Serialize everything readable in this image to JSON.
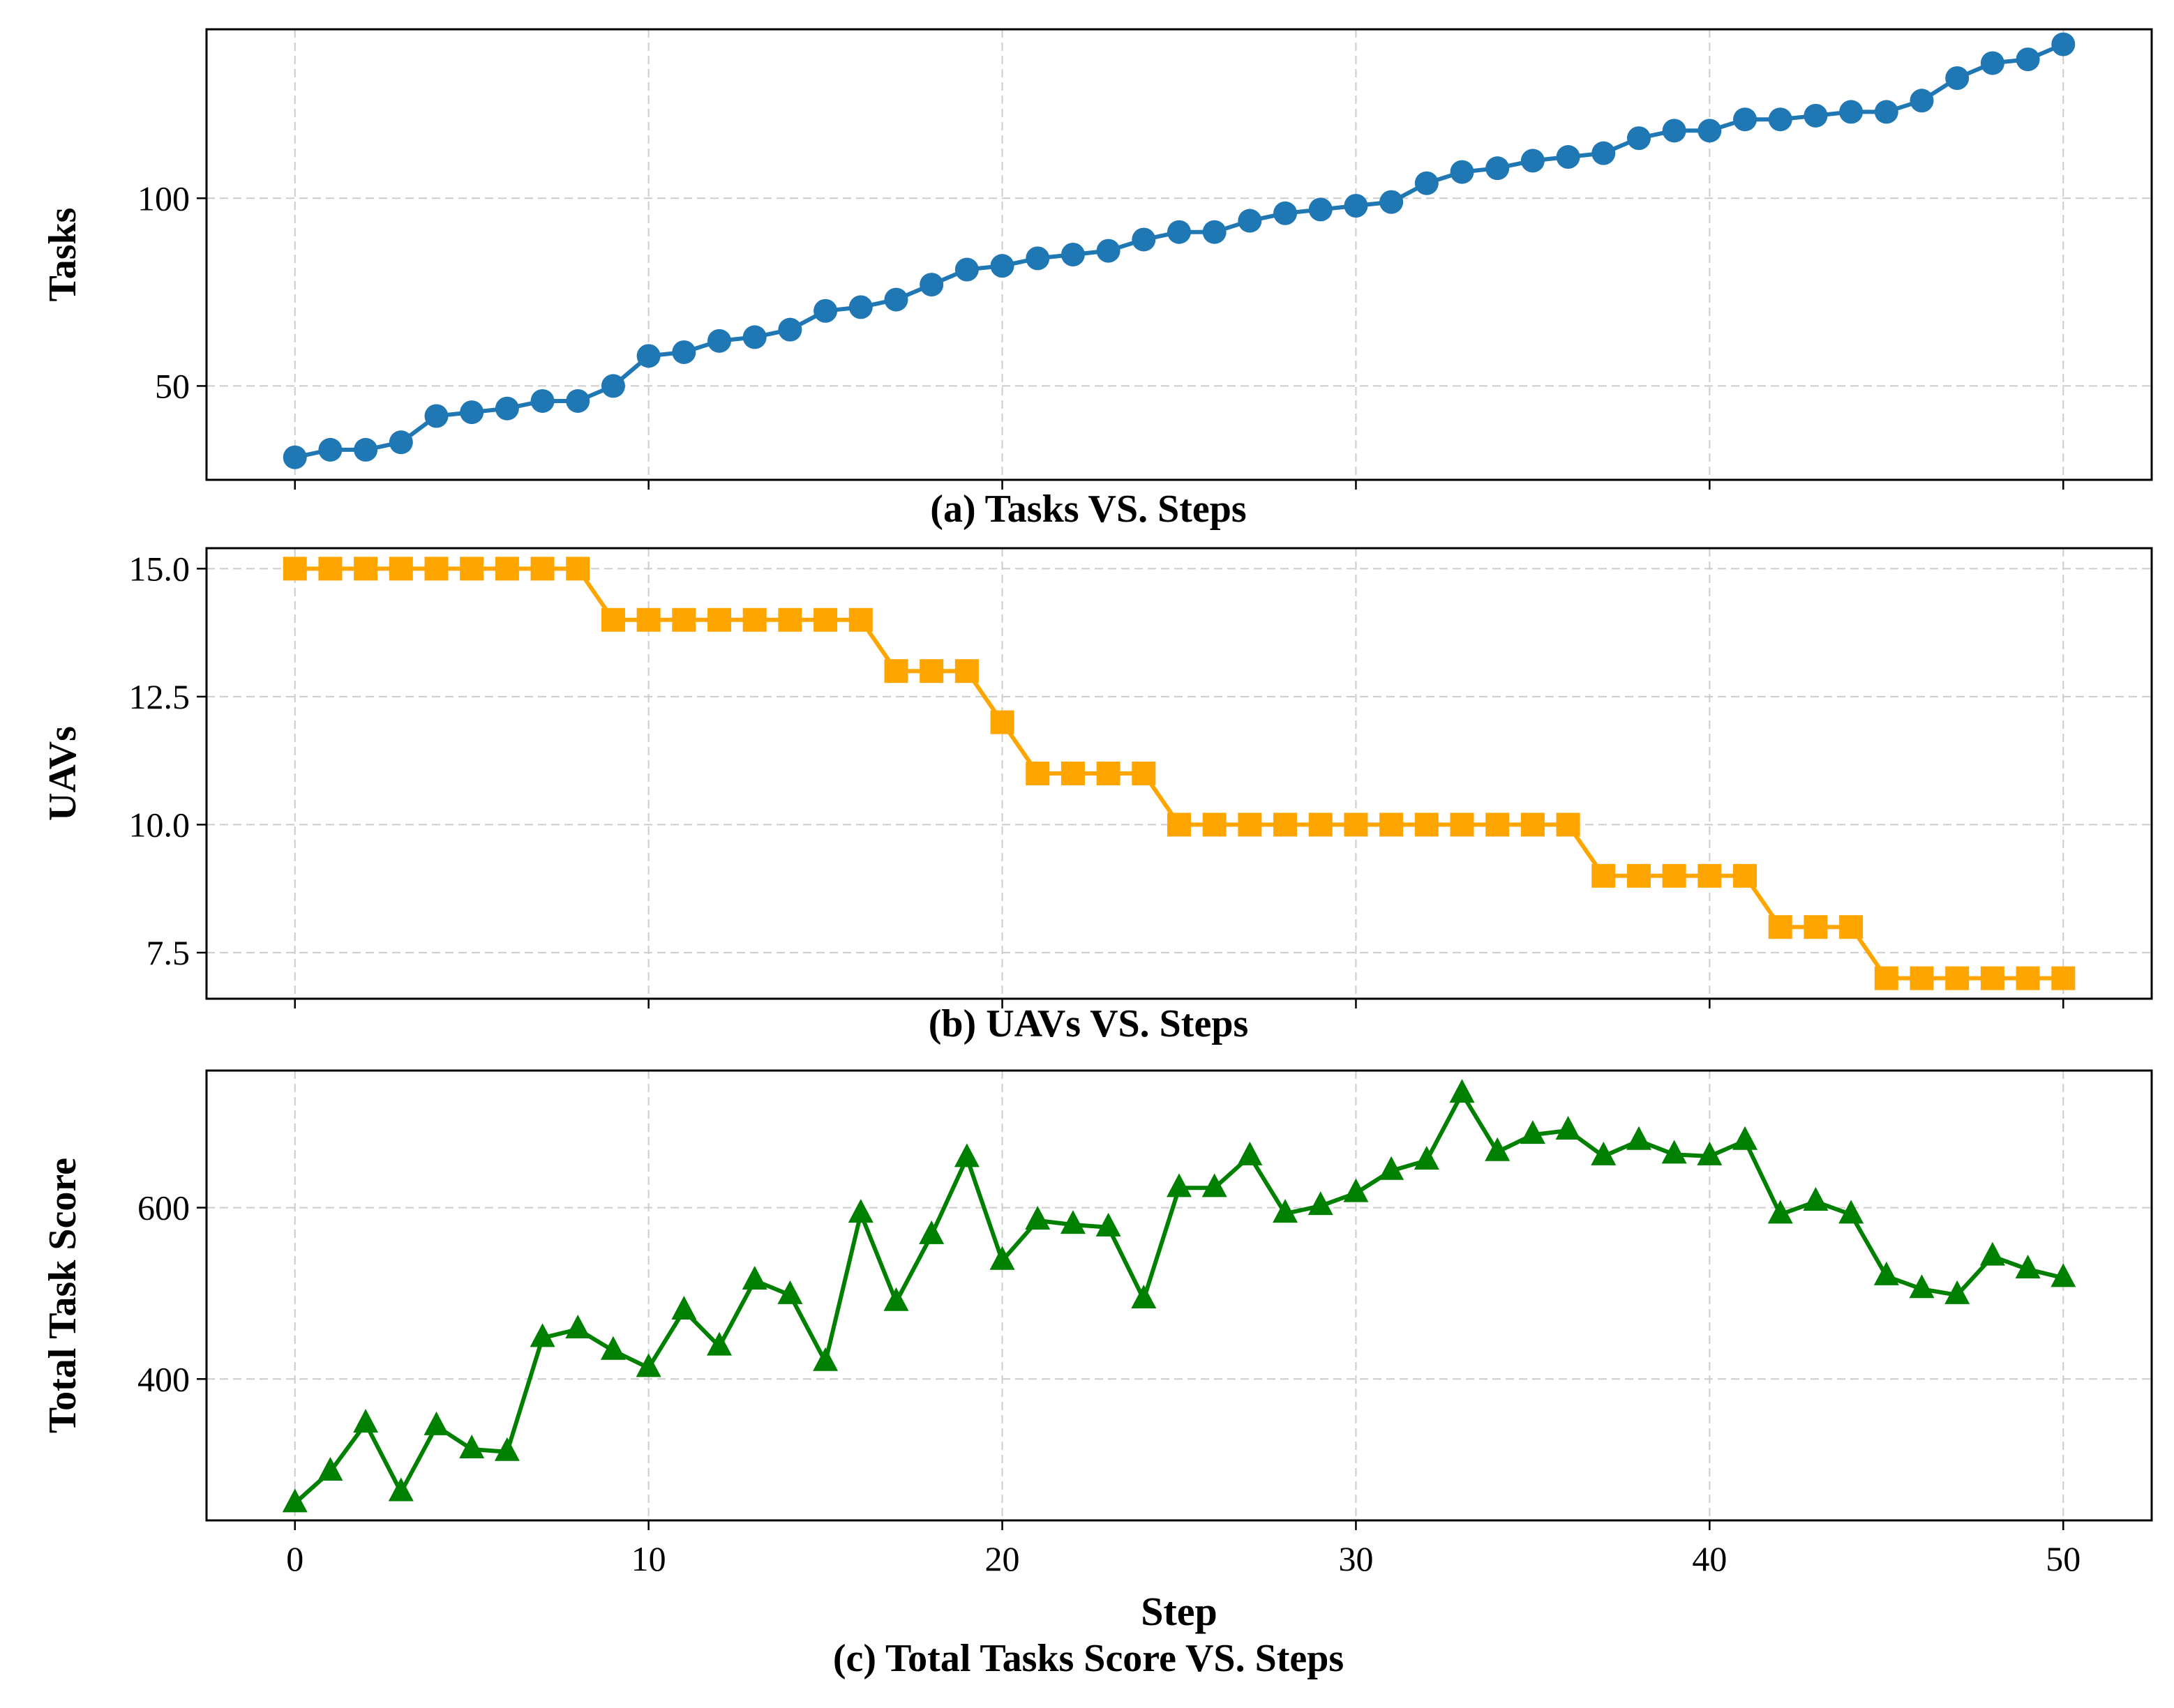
{
  "colors": {
    "blue": "#1f77b4",
    "orange": "#ffa500",
    "green": "#008000",
    "grid": "#cccccc",
    "axis": "#000000"
  },
  "x_axis": {
    "label": "Step",
    "ticks": [
      "0",
      "10",
      "20",
      "30",
      "40",
      "50"
    ]
  },
  "chart_data": [
    {
      "type": "line",
      "title": "(a) Tasks VS. Steps",
      "xlabel": "",
      "ylabel": "Tasks",
      "marker": "circle",
      "xlim": [
        -2.5,
        52.5
      ],
      "ylim": [
        25,
        145
      ],
      "yticks": [
        "50",
        "100"
      ],
      "grid": true,
      "x": [
        0,
        1,
        2,
        3,
        4,
        5,
        6,
        7,
        8,
        9,
        10,
        11,
        12,
        13,
        14,
        15,
        16,
        17,
        18,
        19,
        20,
        21,
        22,
        23,
        24,
        25,
        26,
        27,
        28,
        29,
        30,
        31,
        32,
        33,
        34,
        35,
        36,
        37,
        38,
        39,
        40,
        41,
        42,
        43,
        44,
        45,
        46,
        47,
        48,
        49,
        50
      ],
      "y": [
        31,
        33,
        33,
        35,
        42,
        43,
        44,
        46,
        46,
        50,
        58,
        59,
        62,
        63,
        65,
        70,
        71,
        73,
        77,
        81,
        82,
        84,
        85,
        86,
        89,
        91,
        91,
        94,
        96,
        97,
        98,
        99,
        104,
        107,
        108,
        110,
        111,
        112,
        116,
        118,
        118,
        121,
        121,
        122,
        123,
        123,
        126,
        132,
        136,
        137,
        141
      ]
    },
    {
      "type": "line",
      "title": "(b) UAVs VS. Steps",
      "xlabel": "",
      "ylabel": "UAVs",
      "marker": "square",
      "xlim": [
        -2.5,
        52.5
      ],
      "ylim": [
        6.6,
        15.4
      ],
      "yticks": [
        "7.5",
        "10.0",
        "12.5",
        "15.0"
      ],
      "grid": true,
      "x": [
        0,
        1,
        2,
        3,
        4,
        5,
        6,
        7,
        8,
        9,
        10,
        11,
        12,
        13,
        14,
        15,
        16,
        17,
        18,
        19,
        20,
        21,
        22,
        23,
        24,
        25,
        26,
        27,
        28,
        29,
        30,
        31,
        32,
        33,
        34,
        35,
        36,
        37,
        38,
        39,
        40,
        41,
        42,
        43,
        44,
        45,
        46,
        47,
        48,
        49,
        50
      ],
      "y": [
        15,
        15,
        15,
        15,
        15,
        15,
        15,
        15,
        15,
        14,
        14,
        14,
        14,
        14,
        14,
        14,
        14,
        13,
        13,
        13,
        12,
        11,
        11,
        11,
        11,
        10,
        10,
        10,
        10,
        10,
        10,
        10,
        10,
        10,
        10,
        10,
        10,
        9,
        9,
        9,
        9,
        9,
        8,
        8,
        8,
        7,
        7,
        7,
        7,
        7,
        7
      ]
    },
    {
      "type": "line",
      "title": "(c) Total Tasks Score VS. Steps",
      "xlabel": "Step",
      "ylabel": "Total Task Score",
      "marker": "triangle",
      "xlim": [
        -2.5,
        52.5
      ],
      "ylim": [
        235,
        760
      ],
      "yticks": [
        "400",
        "600"
      ],
      "grid": true,
      "x": [
        0,
        1,
        2,
        3,
        4,
        5,
        6,
        7,
        8,
        9,
        10,
        11,
        12,
        13,
        14,
        15,
        16,
        17,
        18,
        19,
        20,
        21,
        22,
        23,
        24,
        25,
        26,
        27,
        28,
        29,
        30,
        31,
        32,
        33,
        34,
        35,
        36,
        37,
        38,
        39,
        40,
        41,
        42,
        43,
        44,
        45,
        46,
        47,
        48,
        49,
        50
      ],
      "y": [
        255,
        292,
        348,
        268,
        345,
        318,
        315,
        448,
        458,
        433,
        413,
        480,
        438,
        515,
        498,
        420,
        593,
        490,
        568,
        658,
        538,
        585,
        580,
        577,
        493,
        623,
        623,
        660,
        593,
        602,
        617,
        643,
        655,
        733,
        665,
        685,
        690,
        660,
        678,
        662,
        660,
        678,
        592,
        607,
        592,
        520,
        505,
        498,
        543,
        528,
        518
      ]
    }
  ]
}
